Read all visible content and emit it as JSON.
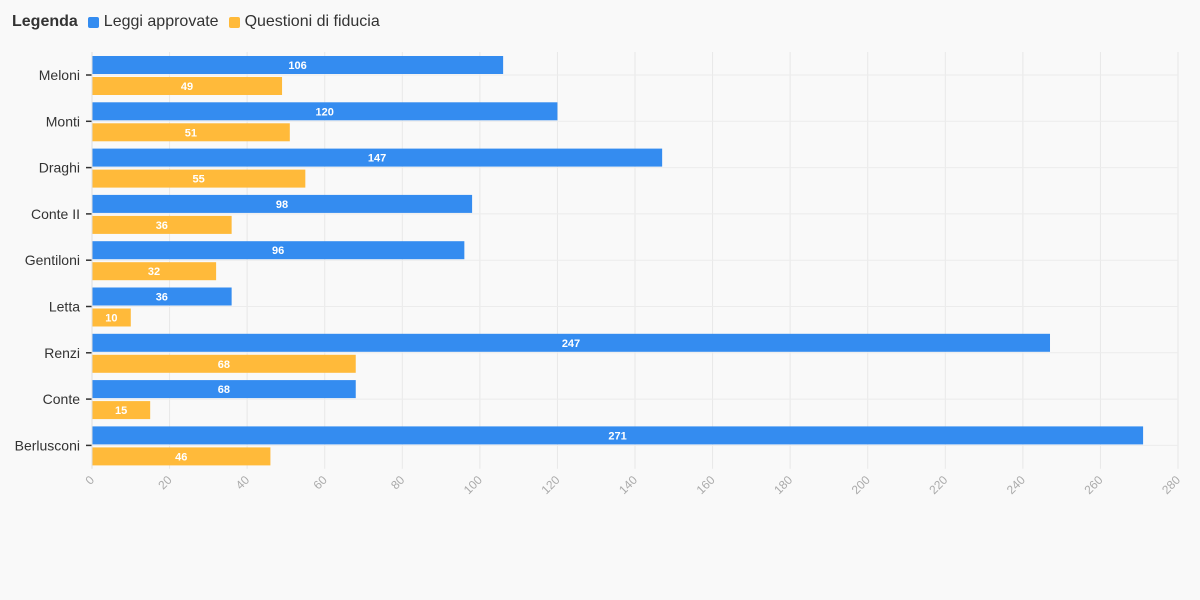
{
  "legend": {
    "title": "Legenda",
    "items": [
      {
        "label": "Leggi approvate",
        "color": "#348cf0"
      },
      {
        "label": "Questioni di fiducia",
        "color": "#ffba3a"
      }
    ]
  },
  "chart_data": {
    "type": "bar",
    "orientation": "horizontal",
    "categories": [
      "Meloni",
      "Monti",
      "Draghi",
      "Conte II",
      "Gentiloni",
      "Letta",
      "Renzi",
      "Conte",
      "Berlusconi"
    ],
    "series": [
      {
        "name": "Leggi approvate",
        "color": "#348cf0",
        "values": [
          106,
          120,
          147,
          98,
          96,
          36,
          247,
          68,
          271
        ]
      },
      {
        "name": "Questioni di fiducia",
        "color": "#ffba3a",
        "values": [
          49,
          51,
          55,
          36,
          32,
          10,
          68,
          15,
          46
        ]
      }
    ],
    "xlim": [
      0,
      280
    ],
    "xticks": [
      0,
      20,
      40,
      60,
      80,
      100,
      120,
      140,
      160,
      180,
      200,
      220,
      240,
      260,
      280
    ],
    "grid": true,
    "legend_position": "top-left",
    "data_labels": true
  }
}
